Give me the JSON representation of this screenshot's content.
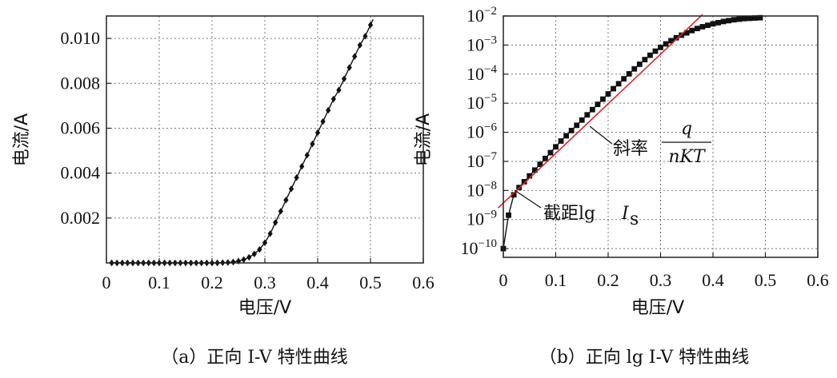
{
  "chart_data": [
    {
      "type": "line",
      "panel": "a",
      "caption": "（a）正向 I-V 特性曲线",
      "xlabel": "电压/V",
      "ylabel": "电流/A",
      "xlim": [
        0,
        0.6
      ],
      "ylim": [
        0,
        0.011
      ],
      "x_ticks": [
        "0",
        "0.1",
        "0.2",
        "0.3",
        "0.4",
        "0.5",
        "0.6"
      ],
      "y_ticks": [
        "0.002",
        "0.004",
        "0.006",
        "0.008",
        "0.010"
      ],
      "grid": true,
      "marker": "diamond",
      "x": [
        0.01,
        0.02,
        0.03,
        0.04,
        0.05,
        0.06,
        0.07,
        0.08,
        0.09,
        0.1,
        0.11,
        0.12,
        0.13,
        0.14,
        0.15,
        0.16,
        0.17,
        0.18,
        0.19,
        0.2,
        0.21,
        0.22,
        0.23,
        0.24,
        0.25,
        0.26,
        0.27,
        0.28,
        0.29,
        0.3,
        0.31,
        0.32,
        0.33,
        0.34,
        0.35,
        0.36,
        0.37,
        0.38,
        0.39,
        0.4,
        0.41,
        0.42,
        0.43,
        0.44,
        0.45,
        0.46,
        0.47,
        0.48,
        0.49,
        0.5
      ],
      "y": [
        0,
        0,
        0,
        0,
        0,
        0,
        0,
        0,
        0,
        0,
        0,
        0,
        0,
        0,
        0,
        0,
        0,
        0,
        0,
        0,
        0,
        1e-05,
        2e-05,
        4e-05,
        8e-05,
        0.00015,
        0.00025,
        0.0004,
        0.0006,
        0.0009,
        0.0013,
        0.0018,
        0.0023,
        0.0028,
        0.0033,
        0.0038,
        0.0043,
        0.0048,
        0.0053,
        0.0058,
        0.0063,
        0.0068,
        0.0073,
        0.0077,
        0.0082,
        0.0087,
        0.0092,
        0.0097,
        0.0101,
        0.0106
      ]
    },
    {
      "type": "line",
      "panel": "b",
      "caption": "（b）正向 lg I-V 特性曲线",
      "xlabel": "电压/V",
      "ylabel": "电流/A",
      "xlim": [
        0,
        0.6
      ],
      "ylim_log10": [
        -10.3,
        -2
      ],
      "x_ticks": [
        "0",
        "0.1",
        "0.2",
        "0.3",
        "0.4",
        "0.5",
        "0.6"
      ],
      "y_tick_exponents": [
        -10,
        -9,
        -8,
        -7,
        -6,
        -5,
        -4,
        -3,
        -2
      ],
      "y_tick_base": "10",
      "grid": true,
      "marker": "square",
      "x": [
        0.0,
        0.01,
        0.02,
        0.03,
        0.04,
        0.05,
        0.06,
        0.07,
        0.08,
        0.09,
        0.1,
        0.11,
        0.12,
        0.13,
        0.14,
        0.15,
        0.16,
        0.17,
        0.18,
        0.19,
        0.2,
        0.21,
        0.22,
        0.23,
        0.24,
        0.25,
        0.26,
        0.27,
        0.28,
        0.29,
        0.3,
        0.31,
        0.32,
        0.33,
        0.34,
        0.35,
        0.36,
        0.37,
        0.38,
        0.39,
        0.4,
        0.41,
        0.42,
        0.43,
        0.44,
        0.45,
        0.46,
        0.47,
        0.48,
        0.49
      ],
      "log10_y": [
        -10.0,
        -8.85,
        -8.15,
        -7.9,
        -7.7,
        -7.5,
        -7.3,
        -7.1,
        -6.9,
        -6.7,
        -6.5,
        -6.3,
        -6.12,
        -5.94,
        -5.76,
        -5.58,
        -5.4,
        -5.22,
        -5.04,
        -4.86,
        -4.68,
        -4.5,
        -4.33,
        -4.16,
        -3.99,
        -3.82,
        -3.66,
        -3.5,
        -3.35,
        -3.21,
        -3.08,
        -2.96,
        -2.85,
        -2.75,
        -2.66,
        -2.58,
        -2.5,
        -2.43,
        -2.37,
        -2.32,
        -2.27,
        -2.23,
        -2.19,
        -2.16,
        -2.13,
        -2.11,
        -2.09,
        -2.08,
        -2.07,
        -2.06
      ],
      "fit_line": {
        "color": "#d62728",
        "x": [
          -0.01,
          0.38
        ],
        "log10_y": [
          -8.6,
          -1.95
        ]
      },
      "annotations": {
        "slope_label": "斜率",
        "slope_numerator": "q",
        "slope_denominator": "nKT",
        "intercept_label": "截距lg",
        "intercept_symbol": "I",
        "intercept_subscript": "s"
      }
    }
  ]
}
